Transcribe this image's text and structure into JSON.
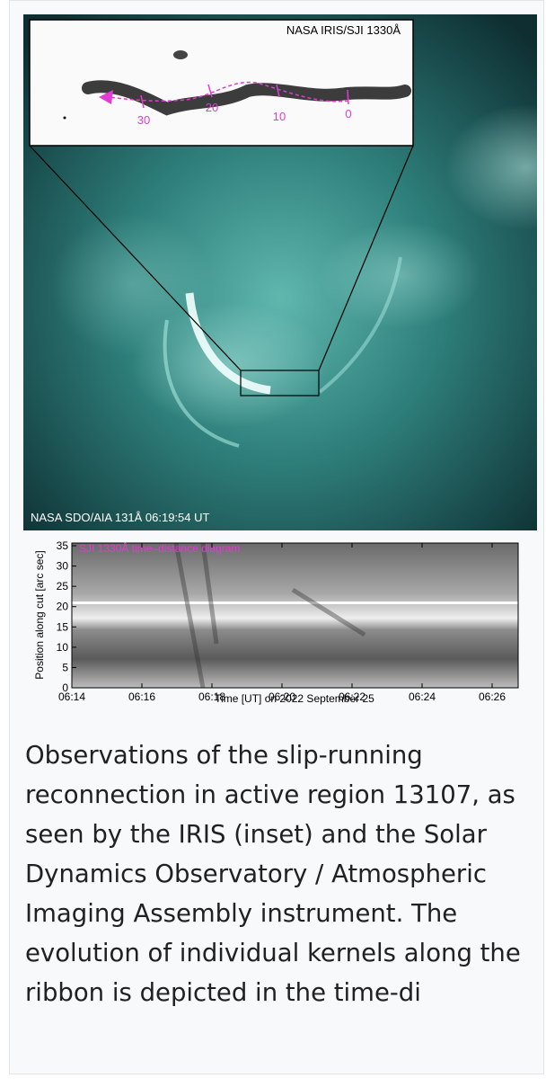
{
  "figure": {
    "inset_label": "NASA IRIS/SJI 1330Å",
    "inset_markers": [
      "30",
      "20",
      "10",
      "0"
    ],
    "image_label": "NASA SDO/AIA 131Å 06:19:54 UT",
    "diagram": {
      "title": "SJI 1330Å time–distance diagram",
      "y_label": "Position along cut [arc sec]",
      "x_label": "Time [UT] on 2022 September 25",
      "yticks": [
        "0",
        "5",
        "10",
        "15",
        "20",
        "25",
        "30",
        "35"
      ],
      "xticks": [
        "06:14",
        "06:16",
        "06:18",
        "06:20",
        "06:22",
        "06:24",
        "06:26"
      ]
    }
  },
  "caption": "Observations of the slip-running reconnection in active region 13107, as seen by the IRIS (inset) and the Solar Dynamics Observatory / Atmospheric Imaging Assembly instrument. The evolution of individual kernels along the ribbon is depicted in the time-di"
}
